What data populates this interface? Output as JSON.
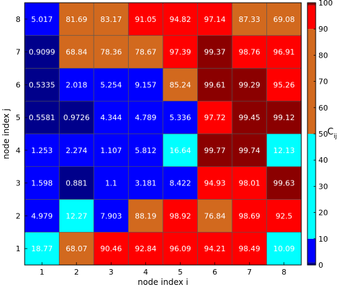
{
  "chart_data": {
    "type": "heatmap",
    "xlabel": "node index i",
    "ylabel": "node index j",
    "x_categories": [
      "1",
      "2",
      "3",
      "4",
      "5",
      "6",
      "7",
      "8"
    ],
    "y_categories": [
      "1",
      "2",
      "3",
      "4",
      "5",
      "6",
      "7",
      "8"
    ],
    "cells": [
      {
        "i": 1,
        "j": 8,
        "value": "5.017"
      },
      {
        "i": 2,
        "j": 8,
        "value": "81.69"
      },
      {
        "i": 3,
        "j": 8,
        "value": "83.17"
      },
      {
        "i": 4,
        "j": 8,
        "value": "91.05"
      },
      {
        "i": 5,
        "j": 8,
        "value": "94.82"
      },
      {
        "i": 6,
        "j": 8,
        "value": "97.14"
      },
      {
        "i": 7,
        "j": 8,
        "value": "87.33"
      },
      {
        "i": 8,
        "j": 8,
        "value": "69.08"
      },
      {
        "i": 1,
        "j": 7,
        "value": "0.9099"
      },
      {
        "i": 2,
        "j": 7,
        "value": "68.84"
      },
      {
        "i": 3,
        "j": 7,
        "value": "78.36"
      },
      {
        "i": 4,
        "j": 7,
        "value": "78.67"
      },
      {
        "i": 5,
        "j": 7,
        "value": "97.39"
      },
      {
        "i": 6,
        "j": 7,
        "value": "99.37"
      },
      {
        "i": 7,
        "j": 7,
        "value": "98.76"
      },
      {
        "i": 8,
        "j": 7,
        "value": "96.91"
      },
      {
        "i": 1,
        "j": 6,
        "value": "0.5335"
      },
      {
        "i": 2,
        "j": 6,
        "value": "2.018"
      },
      {
        "i": 3,
        "j": 6,
        "value": "5.254"
      },
      {
        "i": 4,
        "j": 6,
        "value": "9.157"
      },
      {
        "i": 5,
        "j": 6,
        "value": "85.24"
      },
      {
        "i": 6,
        "j": 6,
        "value": "99.61"
      },
      {
        "i": 7,
        "j": 6,
        "value": "99.29"
      },
      {
        "i": 8,
        "j": 6,
        "value": "95.26"
      },
      {
        "i": 1,
        "j": 5,
        "value": "0.5581"
      },
      {
        "i": 2,
        "j": 5,
        "value": "0.9726"
      },
      {
        "i": 3,
        "j": 5,
        "value": "4.344"
      },
      {
        "i": 4,
        "j": 5,
        "value": "4.789"
      },
      {
        "i": 5,
        "j": 5,
        "value": "5.336"
      },
      {
        "i": 6,
        "j": 5,
        "value": "97.72"
      },
      {
        "i": 7,
        "j": 5,
        "value": "99.45"
      },
      {
        "i": 8,
        "j": 5,
        "value": "99.12"
      },
      {
        "i": 1,
        "j": 4,
        "value": "1.253"
      },
      {
        "i": 2,
        "j": 4,
        "value": "2.274"
      },
      {
        "i": 3,
        "j": 4,
        "value": "1.107"
      },
      {
        "i": 4,
        "j": 4,
        "value": "5.812"
      },
      {
        "i": 5,
        "j": 4,
        "value": "16.64"
      },
      {
        "i": 6,
        "j": 4,
        "value": "99.77"
      },
      {
        "i": 7,
        "j": 4,
        "value": "99.74"
      },
      {
        "i": 8,
        "j": 4,
        "value": "12.13"
      },
      {
        "i": 1,
        "j": 3,
        "value": "1.598"
      },
      {
        "i": 2,
        "j": 3,
        "value": "0.881"
      },
      {
        "i": 3,
        "j": 3,
        "value": "1.1"
      },
      {
        "i": 4,
        "j": 3,
        "value": "3.181"
      },
      {
        "i": 5,
        "j": 3,
        "value": "8.422"
      },
      {
        "i": 6,
        "j": 3,
        "value": "94.93"
      },
      {
        "i": 7,
        "j": 3,
        "value": "98.01"
      },
      {
        "i": 8,
        "j": 3,
        "value": "99.63"
      },
      {
        "i": 1,
        "j": 2,
        "value": "4.979"
      },
      {
        "i": 2,
        "j": 2,
        "value": "12.27"
      },
      {
        "i": 3,
        "j": 2,
        "value": "7.903"
      },
      {
        "i": 4,
        "j": 2,
        "value": "88.19"
      },
      {
        "i": 5,
        "j": 2,
        "value": "98.92"
      },
      {
        "i": 6,
        "j": 2,
        "value": "76.84"
      },
      {
        "i": 7,
        "j": 2,
        "value": "98.69"
      },
      {
        "i": 8,
        "j": 2,
        "value": "92.5"
      },
      {
        "i": 1,
        "j": 1,
        "value": "18.77"
      },
      {
        "i": 2,
        "j": 1,
        "value": "68.07"
      },
      {
        "i": 3,
        "j": 1,
        "value": "90.46"
      },
      {
        "i": 4,
        "j": 1,
        "value": "92.84"
      },
      {
        "i": 5,
        "j": 1,
        "value": "96.09"
      },
      {
        "i": 6,
        "j": 1,
        "value": "94.21"
      },
      {
        "i": 7,
        "j": 1,
        "value": "98.49"
      },
      {
        "i": 8,
        "j": 1,
        "value": "10.09"
      }
    ],
    "colorbar": {
      "label_base": "C",
      "label_sub": "ij",
      "ticks": [
        "0",
        "10",
        "20",
        "30",
        "40",
        "50",
        "60",
        "70",
        "80",
        "90",
        "100"
      ],
      "range": [
        0,
        100
      ],
      "bands": [
        {
          "from": 0,
          "to": 1,
          "color": "#00008b"
        },
        {
          "from": 1,
          "to": 10,
          "color": "#0000ff"
        },
        {
          "from": 10,
          "to": 50,
          "color": "#00ffff"
        },
        {
          "from": 50,
          "to": 90,
          "color": "#d2691e"
        },
        {
          "from": 90,
          "to": 99,
          "color": "#ff0000"
        },
        {
          "from": 99,
          "to": 100,
          "color": "#8b0000"
        }
      ]
    },
    "grid": false
  }
}
